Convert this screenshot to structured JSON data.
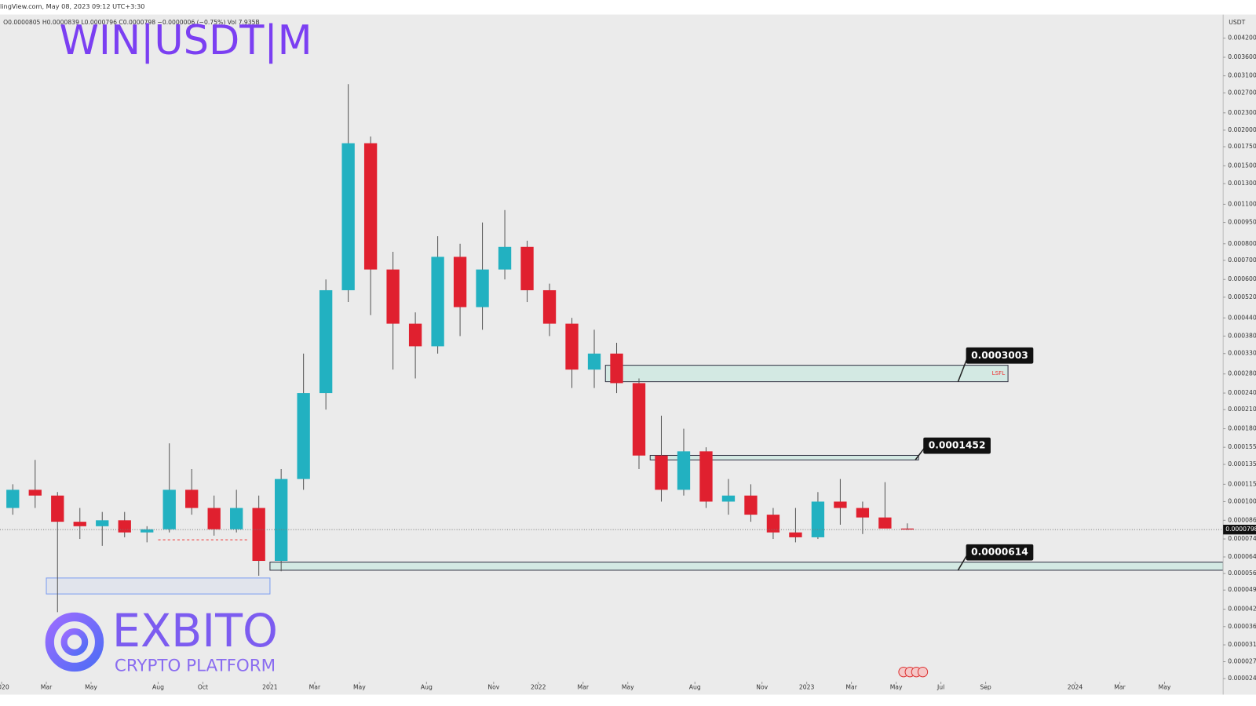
{
  "chart_data": {
    "type": "candlestick",
    "header": "lingView.com, May 08, 2023 09:12 UTC+3:30",
    "ohlc_line": "O0.0000805 H0.0000839 L0.0000796 C0.0000798 −0.0000006 (−0.75%) Vol 7.935B",
    "title": "WIN|USDT|M",
    "unit": "USDT",
    "log_scale": true,
    "grid": false,
    "up_color": "#22b1c1",
    "down_color": "#e0202f",
    "x": [
      "2020-01",
      "2020-02",
      "2020-03",
      "2020-04",
      "2020-05",
      "2020-06",
      "2020-07",
      "2020-08",
      "2020-09",
      "2020-10",
      "2020-11",
      "2020-12",
      "2021-01",
      "2021-02",
      "2021-03",
      "2021-04",
      "2021-05",
      "2021-06",
      "2021-07",
      "2021-08",
      "2021-09",
      "2021-10",
      "2021-11",
      "2021-12",
      "2022-01",
      "2022-02",
      "2022-03",
      "2022-04",
      "2022-05",
      "2022-06",
      "2022-07",
      "2022-08",
      "2022-09",
      "2022-10",
      "2022-11",
      "2022-12",
      "2023-01",
      "2023-02",
      "2023-03",
      "2023-04",
      "2023-05"
    ],
    "open": [
      9.5e-05,
      0.00011,
      0.000105,
      8.5e-05,
      8.2e-05,
      8.6e-05,
      7.8e-05,
      8e-05,
      0.00011,
      9.5e-05,
      8e-05,
      9.5e-05,
      6.2e-05,
      0.00012,
      0.00024,
      0.00055,
      0.0018,
      0.00065,
      0.00042,
      0.00035,
      0.00072,
      0.00048,
      0.00065,
      0.00078,
      0.00055,
      0.00042,
      0.00029,
      0.00033,
      0.00026,
      0.000145,
      0.00011,
      0.00015,
      0.0001,
      0.000105,
      9e-05,
      7.8e-05,
      7.5e-05,
      0.0001,
      9.5e-05,
      8.8e-05,
      8.05e-05
    ],
    "high": [
      0.000115,
      0.00014,
      0.000108,
      9.5e-05,
      9.2e-05,
      9.2e-05,
      8.2e-05,
      0.00016,
      0.00013,
      0.000105,
      0.00011,
      0.000105,
      0.00013,
      0.00033,
      0.0006,
      0.0029,
      0.0019,
      0.00075,
      0.00046,
      0.00085,
      0.0008,
      0.00095,
      0.00105,
      0.00082,
      0.00058,
      0.00044,
      0.0004,
      0.00036,
      0.00027,
      0.0002,
      0.00018,
      0.000155,
      0.00012,
      0.000115,
      9.5e-05,
      9.5e-05,
      0.000108,
      0.00012,
      0.0001,
      0.000117,
      8.39e-05
    ],
    "low": [
      9e-05,
      9.5e-05,
      4.1e-05,
      7.4e-05,
      7e-05,
      7.5e-05,
      7.2e-05,
      7.8e-05,
      9e-05,
      7.6e-05,
      7.8e-05,
      5.5e-05,
      5.7e-05,
      0.00011,
      0.00021,
      0.0005,
      0.00045,
      0.00029,
      0.00027,
      0.00033,
      0.00038,
      0.0004,
      0.0006,
      0.0005,
      0.00038,
      0.00025,
      0.00025,
      0.00024,
      0.00013,
      0.0001,
      0.000105,
      9.5e-05,
      9e-05,
      8.5e-05,
      7.4e-05,
      7.2e-05,
      7.4e-05,
      8.3e-05,
      7.7e-05,
      8.2e-05,
      7.96e-05
    ],
    "close": [
      0.00011,
      0.000105,
      8.5e-05,
      8.2e-05,
      8.6e-05,
      7.8e-05,
      8e-05,
      0.00011,
      9.5e-05,
      8e-05,
      9.5e-05,
      6.2e-05,
      0.00012,
      0.00024,
      0.00055,
      0.0018,
      0.00065,
      0.00042,
      0.00035,
      0.00072,
      0.00048,
      0.00065,
      0.00078,
      0.00055,
      0.00042,
      0.00029,
      0.00033,
      0.00026,
      0.000145,
      0.00011,
      0.00015,
      0.0001,
      0.000105,
      9e-05,
      7.8e-05,
      7.5e-05,
      0.0001,
      9.5e-05,
      8.8e-05,
      8.05e-05,
      7.98e-05
    ],
    "xlim": [
      "2020-01",
      "2024-08"
    ],
    "xticks": [
      {
        "value": "2020-01",
        "label": "2020"
      },
      {
        "value": "2020-03",
        "label": "Mar"
      },
      {
        "value": "2020-05",
        "label": "May"
      },
      {
        "value": "2020-08",
        "label": "Aug"
      },
      {
        "value": "2020-10",
        "label": "Oct"
      },
      {
        "value": "2021-01",
        "label": "2021"
      },
      {
        "value": "2021-03",
        "label": "Mar"
      },
      {
        "value": "2021-05",
        "label": "May"
      },
      {
        "value": "2021-08",
        "label": "Aug"
      },
      {
        "value": "2021-11",
        "label": "Nov"
      },
      {
        "value": "2022-01",
        "label": "2022"
      },
      {
        "value": "2022-03",
        "label": "Mar"
      },
      {
        "value": "2022-05",
        "label": "May"
      },
      {
        "value": "2022-08",
        "label": "Aug"
      },
      {
        "value": "2022-11",
        "label": "Nov"
      },
      {
        "value": "2023-01",
        "label": "2023"
      },
      {
        "value": "2023-03",
        "label": "Mar"
      },
      {
        "value": "2023-05",
        "label": "May"
      },
      {
        "value": "2023-07",
        "label": "Jul"
      },
      {
        "value": "2023-09",
        "label": "Sep"
      },
      {
        "value": "2024-01",
        "label": "2024"
      },
      {
        "value": "2024-03",
        "label": "Mar"
      },
      {
        "value": "2024-05",
        "label": "May"
      }
    ],
    "ylim": [
      2.34e-05,
      0.00508
    ],
    "yticks": [
      {
        "value": 0.0042,
        "label": "0.0042000"
      },
      {
        "value": 0.0036,
        "label": "0.0036000"
      },
      {
        "value": 0.0031,
        "label": "0.0031000"
      },
      {
        "value": 0.0027,
        "label": "0.0027000"
      },
      {
        "value": 0.0023,
        "label": "0.0023000"
      },
      {
        "value": 0.002,
        "label": "0.0020000"
      },
      {
        "value": 0.00175,
        "label": "0.0017500"
      },
      {
        "value": 0.0015,
        "label": "0.0015000"
      },
      {
        "value": 0.0013,
        "label": "0.0013000"
      },
      {
        "value": 0.0011,
        "label": "0.0011000"
      },
      {
        "value": 0.00095,
        "label": "0.0009500"
      },
      {
        "value": 0.0008,
        "label": "0.0008000"
      },
      {
        "value": 0.0007,
        "label": "0.0007000"
      },
      {
        "value": 0.0006,
        "label": "0.0006000"
      },
      {
        "value": 0.00052,
        "label": "0.0005200"
      },
      {
        "value": 0.00044,
        "label": "0.0004400"
      },
      {
        "value": 0.00038,
        "label": "0.0003800"
      },
      {
        "value": 0.00033,
        "label": "0.0003300"
      },
      {
        "value": 0.00028,
        "label": "0.0002800"
      },
      {
        "value": 0.00024,
        "label": "0.0002400"
      },
      {
        "value": 0.00021,
        "label": "0.0002100"
      },
      {
        "value": 0.00018,
        "label": "0.0001800"
      },
      {
        "value": 0.000155,
        "label": "0.0001550"
      },
      {
        "value": 0.000135,
        "label": "0.0001350"
      },
      {
        "value": 0.000115,
        "label": "0.0001150"
      },
      {
        "value": 0.0001,
        "label": "0.0001000"
      },
      {
        "value": 8.6e-05,
        "label": "0.0000860"
      },
      {
        "value": 7.4e-05,
        "label": "0.0000740"
      },
      {
        "value": 6.4e-05,
        "label": "0.0000640"
      },
      {
        "value": 5.6e-05,
        "label": "0.0000560"
      },
      {
        "value": 4.9e-05,
        "label": "0.0000490"
      },
      {
        "value": 4.2e-05,
        "label": "0.0000420"
      },
      {
        "value": 3.65e-05,
        "label": "0.0000365"
      },
      {
        "value": 3.15e-05,
        "label": "0.0000315"
      },
      {
        "value": 2.75e-05,
        "label": "0.0000275"
      },
      {
        "value": 2.4e-05,
        "label": "0.0000240"
      }
    ],
    "zones": [
      {
        "top": 0.0003003,
        "bottom": 0.000263,
        "start": "2022-04",
        "end": "2023-10",
        "note": "LSFL"
      },
      {
        "top": 0.0001452,
        "bottom": 0.00014,
        "start": "2022-06",
        "end": "2023-06"
      },
      {
        "top": 6.14e-05,
        "bottom": 5.75e-05,
        "start": "2021-01",
        "end": "2024-08"
      }
    ],
    "range_box": {
      "top": 5.4e-05,
      "bottom": 4.75e-05,
      "start": "2020-03",
      "end": "2021-01"
    },
    "dashed_level": {
      "value": 7.35e-05,
      "start": "2020-08",
      "end": "2020-12"
    },
    "logo": {
      "name": "EXBITO",
      "tagline": "CRYPTO PLATFORM"
    }
  }
}
